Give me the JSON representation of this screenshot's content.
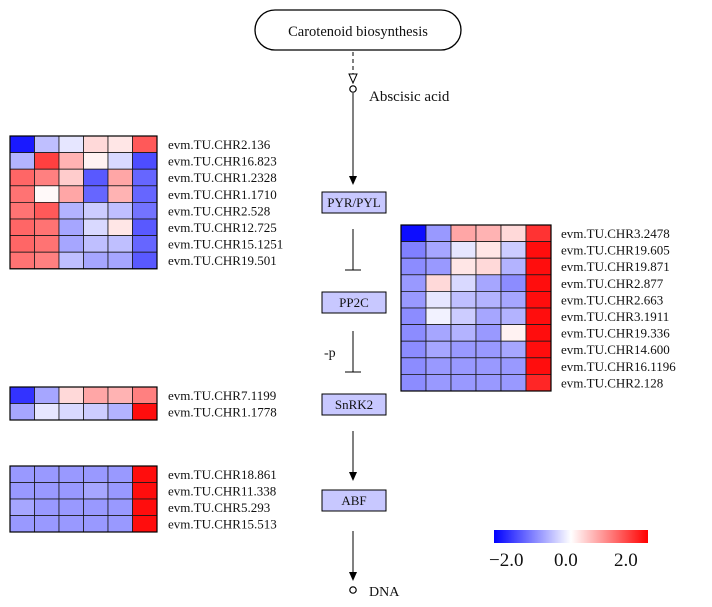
{
  "pathway": {
    "start_node": "Carotenoid biosynthesis",
    "metabolite": "Abscisic acid",
    "end_metabolite": "DNA",
    "edge_label_p": "-p",
    "nodes": {
      "pyr": "PYR/PYL",
      "pp2c": "PP2C",
      "snrk2": "SnRK2",
      "abf": "ABF"
    }
  },
  "legend": {
    "min_label": "−2.0",
    "mid_label": "0.0",
    "max_label": "2.0",
    "colors": {
      "low": "#0000ff",
      "mid": "#ffffff",
      "high": "#ff0000"
    },
    "range": [
      -2.0,
      2.0
    ]
  },
  "heatmaps": [
    {
      "id": "pyr",
      "genes": [
        "evm.TU.CHR2.136",
        "evm.TU.CHR16.823",
        "evm.TU.CHR1.2328",
        "evm.TU.CHR1.1710",
        "evm.TU.CHR2.528",
        "evm.TU.CHR12.725",
        "evm.TU.CHR15.1251",
        "evm.TU.CHR19.501"
      ],
      "values": [
        [
          -1.8,
          -0.5,
          -0.2,
          0.3,
          0.2,
          1.3
        ],
        [
          -0.6,
          1.5,
          0.6,
          0.1,
          -0.3,
          -1.4
        ],
        [
          1.2,
          1.0,
          0.4,
          -1.3,
          0.7,
          -1.2
        ],
        [
          1.1,
          0.05,
          0.7,
          -1.2,
          0.6,
          -1.2
        ],
        [
          1.1,
          1.3,
          -0.6,
          -0.4,
          -0.5,
          -1.1
        ],
        [
          1.2,
          1.1,
          -0.7,
          -0.3,
          0.2,
          -1.3
        ],
        [
          1.2,
          1.1,
          -0.7,
          -0.5,
          -0.5,
          -1.2
        ],
        [
          1.1,
          1.0,
          -0.5,
          -0.7,
          -0.7,
          -1.3
        ]
      ]
    },
    {
      "id": "pp2c",
      "genes": [
        "evm.TU.CHR3.2478",
        "evm.TU.CHR19.605",
        "evm.TU.CHR19.871",
        "evm.TU.CHR2.877",
        "evm.TU.CHR2.663",
        "evm.TU.CHR3.1911",
        "evm.TU.CHR19.336",
        "evm.TU.CHR14.600",
        "evm.TU.CHR16.1196",
        "evm.TU.CHR2.128"
      ],
      "values": [
        [
          -1.9,
          -0.8,
          0.7,
          0.6,
          0.3,
          1.6
        ],
        [
          -1.0,
          -0.7,
          -0.2,
          0.2,
          -0.4,
          1.9
        ],
        [
          -0.9,
          -0.8,
          0.2,
          0.3,
          -0.6,
          1.9
        ],
        [
          -0.8,
          0.3,
          -0.3,
          -0.7,
          -0.9,
          1.9
        ],
        [
          -0.8,
          -0.2,
          -0.5,
          -0.6,
          -0.7,
          1.9
        ],
        [
          -0.9,
          -0.1,
          -0.4,
          -0.7,
          -0.6,
          1.9
        ],
        [
          -0.9,
          -0.7,
          -0.6,
          -0.8,
          0.1,
          1.9
        ],
        [
          -0.9,
          -0.7,
          -0.8,
          -0.8,
          -0.7,
          1.9
        ],
        [
          -0.9,
          -0.8,
          -0.8,
          -0.8,
          -0.8,
          1.9
        ],
        [
          -0.9,
          -0.8,
          -0.8,
          -0.8,
          -0.8,
          1.7
        ]
      ]
    },
    {
      "id": "snrk2",
      "genes": [
        "evm.TU.CHR7.1199",
        "evm.TU.CHR1.1778"
      ],
      "values": [
        [
          -1.6,
          -0.7,
          0.3,
          0.7,
          0.6,
          1.0
        ],
        [
          -0.7,
          -0.2,
          -0.3,
          -0.4,
          -0.6,
          1.9
        ]
      ]
    },
    {
      "id": "abf",
      "genes": [
        "evm.TU.CHR18.861",
        "evm.TU.CHR11.338",
        "evm.TU.CHR5.293",
        "evm.TU.CHR15.513"
      ],
      "values": [
        [
          -0.8,
          -0.8,
          -0.8,
          -0.8,
          -0.8,
          1.9
        ],
        [
          -0.8,
          -0.8,
          -0.8,
          -0.7,
          -0.8,
          1.9
        ],
        [
          -0.7,
          -0.8,
          -0.8,
          -0.8,
          -0.8,
          1.9
        ],
        [
          -0.8,
          -0.8,
          -0.8,
          -0.8,
          -0.8,
          1.9
        ]
      ]
    }
  ]
}
